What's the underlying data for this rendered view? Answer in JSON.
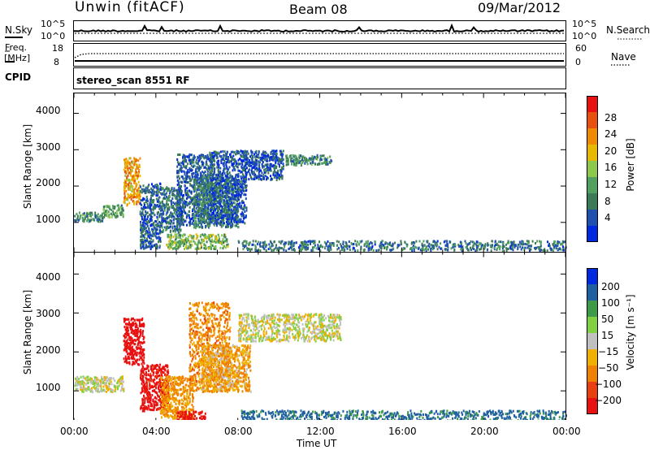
{
  "header": {
    "title": "Unwin (fitACF)",
    "beam": "Beam 08",
    "date": "09/Mar/2012"
  },
  "strip": {
    "nsky_label": "N.Sky",
    "nsky_top": "10^5",
    "nsky_bottom": "10^0",
    "nsearch_label": "N.Search",
    "nsearch_top": "10^5",
    "nsearch_bottom": "10^0",
    "freq_label": "Freq.",
    "freq_unit": "[MHz]",
    "freq_top": "18",
    "freq_bottom": "8",
    "nave_label": "Nave",
    "nave_top": "60",
    "nave_bottom": "0",
    "cpid_label": "CPID",
    "cpid_text": "stereo_scan 8551 RF"
  },
  "colors": {
    "power_scale": [
      "#0028e0",
      "#2050b0",
      "#3c7a58",
      "#52a060",
      "#8cc84c",
      "#e8b800",
      "#f08a00",
      "#e85010",
      "#e81010"
    ],
    "velocity_scale": [
      "#e81010",
      "#e84010",
      "#f08000",
      "#f0b000",
      "#c0c0c0",
      "#80d040",
      "#3c9a48",
      "#2060a0",
      "#0028e0"
    ]
  },
  "chart_data": [
    {
      "type": "heatmap",
      "name": "power-panel",
      "xlabel": "",
      "ylabel": "Slant Range [km]",
      "xlim": [
        0,
        24
      ],
      "ylim": [
        180,
        4560
      ],
      "yticks": [
        "1000",
        "2000",
        "3000",
        "4000"
      ],
      "colorbar": {
        "label": "Power [dB]",
        "range": [
          0,
          32
        ],
        "ticks": [
          "4",
          "8",
          "12",
          "16",
          "20",
          "24",
          "28"
        ]
      },
      "features": [
        {
          "t0": 0.0,
          "t1": 1.4,
          "r0": 1050,
          "r1": 1300,
          "value": 10
        },
        {
          "t0": 1.4,
          "t1": 2.4,
          "r0": 1150,
          "r1": 1500,
          "value": 12
        },
        {
          "t0": 2.4,
          "t1": 3.2,
          "r0": 1500,
          "r1": 2800,
          "value": 22
        },
        {
          "t0": 3.2,
          "t1": 4.2,
          "r0": 300,
          "r1": 2100,
          "value": 6
        },
        {
          "t0": 4.2,
          "t1": 5.2,
          "r0": 750,
          "r1": 2000,
          "value": 8
        },
        {
          "t0": 5.0,
          "t1": 6.8,
          "r0": 950,
          "r1": 2900,
          "value": 6
        },
        {
          "t0": 5.8,
          "t1": 8.0,
          "r0": 880,
          "r1": 2300,
          "value": 9
        },
        {
          "t0": 6.6,
          "t1": 8.4,
          "r0": 1000,
          "r1": 3000,
          "value": 5
        },
        {
          "t0": 8.2,
          "t1": 10.2,
          "r0": 2200,
          "r1": 3000,
          "value": 5
        },
        {
          "t0": 10.3,
          "t1": 12.6,
          "r0": 2600,
          "r1": 2880,
          "value": 10
        },
        {
          "t0": 4.5,
          "t1": 7.5,
          "r0": 300,
          "r1": 700,
          "value": 14
        },
        {
          "t0": 8.0,
          "t1": 24.0,
          "r0": 250,
          "r1": 520,
          "value": 8
        }
      ]
    },
    {
      "type": "heatmap",
      "name": "velocity-panel",
      "xlabel": "Time UT",
      "ylabel": "Slant Range [km]",
      "xlim": [
        0,
        24
      ],
      "ylim": [
        180,
        4560
      ],
      "xticks": [
        "00:00",
        "04:00",
        "08:00",
        "12:00",
        "16:00",
        "20:00",
        "00:00"
      ],
      "yticks": [
        "1000",
        "2000",
        "3000",
        "4000"
      ],
      "colorbar": {
        "label": "Velocity [m s⁻¹]",
        "ticks": [
          "200",
          "100",
          "50",
          "15",
          "−15",
          "−50",
          "−100",
          "−200"
        ]
      },
      "features": [
        {
          "t0": 0.0,
          "t1": 2.4,
          "r0": 1000,
          "r1": 1400,
          "value": 0
        },
        {
          "t0": 2.4,
          "t1": 3.4,
          "r0": 1700,
          "r1": 2900,
          "value": -250
        },
        {
          "t0": 3.2,
          "t1": 4.6,
          "r0": 500,
          "r1": 1700,
          "value": -230
        },
        {
          "t0": 4.2,
          "t1": 5.8,
          "r0": 300,
          "r1": 1400,
          "value": -60
        },
        {
          "t0": 5.6,
          "t1": 7.6,
          "r0": 1000,
          "r1": 3300,
          "value": -70
        },
        {
          "t0": 6.2,
          "t1": 8.6,
          "r0": 1000,
          "r1": 2200,
          "value": -40
        },
        {
          "t0": 8.0,
          "t1": 13.0,
          "r0": 2300,
          "r1": 3000,
          "value": 0
        },
        {
          "t0": 5.0,
          "t1": 6.4,
          "r0": 200,
          "r1": 500,
          "value": -230
        },
        {
          "t0": 8.0,
          "t1": 24.0,
          "r0": 250,
          "r1": 520,
          "value": 120
        }
      ]
    }
  ]
}
